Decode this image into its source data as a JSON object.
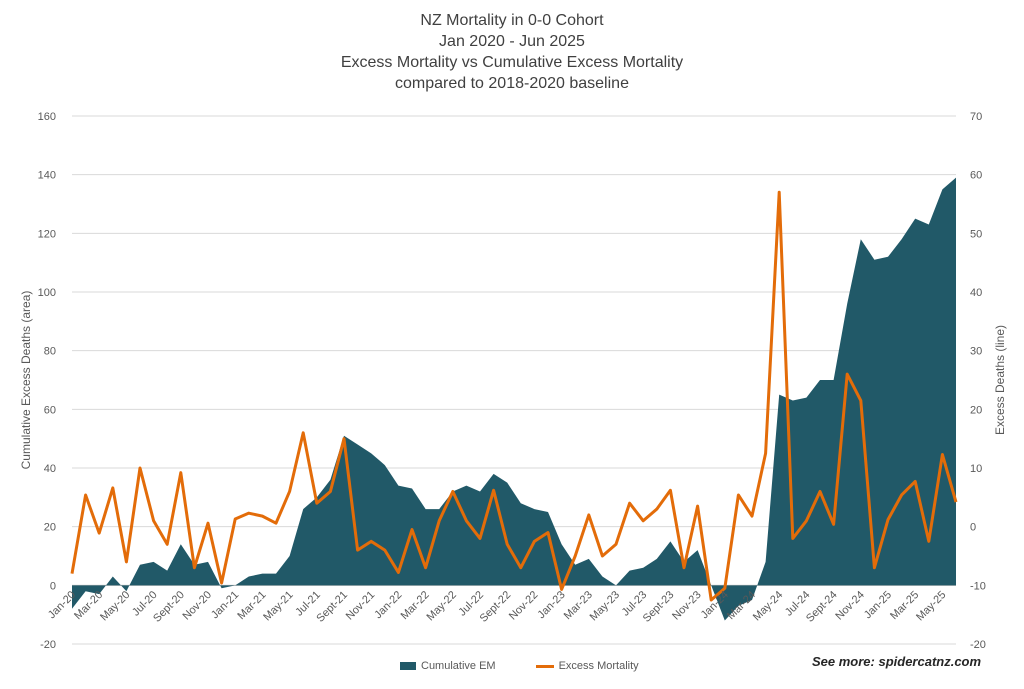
{
  "title_lines": [
    "NZ Mortality in 0-0 Cohort",
    "Jan 2020 - Jun 2025",
    "Excess Mortality vs Cumulative Excess Mortality",
    "compared to 2018-2020 baseline"
  ],
  "source_note": "See more: spidercatnz.com",
  "colors": {
    "area": "#215968",
    "line": "#E36C09",
    "grid": "#D9D9D9",
    "text": "#595959"
  },
  "chart_data": {
    "type": "area",
    "title": "NZ Mortality in 0-0 Cohort / Jan 2020 - Jun 2025 / Excess Mortality vs Cumulative Excess Mortality / compared to 2018-2020 baseline",
    "ylabel_left": "Cumulative Excess Deaths (area)",
    "ylabel_right": "Excess Deaths (line)",
    "ylim_left": [
      -20,
      160
    ],
    "ylim_right": [
      -20,
      70
    ],
    "yticks_left": [
      -20,
      0,
      20,
      40,
      60,
      80,
      100,
      120,
      140,
      160
    ],
    "yticks_right": [
      -20,
      -10,
      0,
      10,
      20,
      30,
      40,
      50,
      60,
      70
    ],
    "grid": true,
    "legend_position": "bottom",
    "x_tick_labels": [
      "Jan-20",
      "Mar-20",
      "May-20",
      "Jul-20",
      "Sept-20",
      "Nov-20",
      "Jan-21",
      "Mar-21",
      "May-21",
      "Jul-21",
      "Sept-21",
      "Nov-21",
      "Jan-22",
      "Mar-22",
      "May-22",
      "Jul-22",
      "Sept-22",
      "Nov-22",
      "Jan-23",
      "Mar-23",
      "May-23",
      "Jul-23",
      "Sept-23",
      "Nov-23",
      "Jan-24",
      "Mar-24",
      "May-24",
      "Jul-24",
      "Sept-24",
      "Nov-24",
      "Jan-25",
      "Mar-25",
      "May-25"
    ],
    "series": [
      {
        "name": "Cumulative EM",
        "type": "area",
        "axis": "left",
        "values": [
          -8,
          -2,
          -3,
          3,
          -2,
          7,
          8,
          5,
          14,
          7,
          8,
          -1,
          0,
          3,
          4,
          4,
          10,
          26,
          30,
          36,
          51,
          48,
          45,
          41,
          34,
          33,
          26,
          26,
          32,
          34,
          32,
          38,
          35,
          28,
          26,
          25,
          14,
          7,
          9,
          3,
          0,
          5,
          6,
          9,
          15,
          8,
          12,
          0,
          -12,
          -7,
          -5,
          8,
          65,
          63,
          64,
          70,
          70,
          96,
          118,
          111,
          112,
          118,
          125,
          123,
          135,
          139
        ]
      },
      {
        "name": "Excess Mortality",
        "type": "line",
        "axis": "right",
        "values": [
          -8,
          5.4,
          -1.1,
          6.6,
          -6,
          10,
          1,
          -3,
          9.2,
          -7,
          0.6,
          -9.6,
          1.3,
          2.3,
          1.8,
          0.6,
          6,
          16,
          4,
          6,
          15,
          -4,
          -2.5,
          -4,
          -7.8,
          -0.5,
          -7,
          1,
          6,
          1,
          -2,
          6.2,
          -3,
          -7,
          -2.5,
          -1,
          -10.7,
          -5,
          2,
          -5,
          -3,
          4,
          1,
          3,
          6.2,
          -7,
          3.5,
          -12.5,
          -10.5,
          5.4,
          1.8,
          12.5,
          57,
          -2,
          1,
          6,
          0.4,
          26,
          21.5,
          -7,
          1.2,
          5.4,
          7.7,
          -2.5,
          12.3,
          4.2
        ]
      }
    ]
  }
}
